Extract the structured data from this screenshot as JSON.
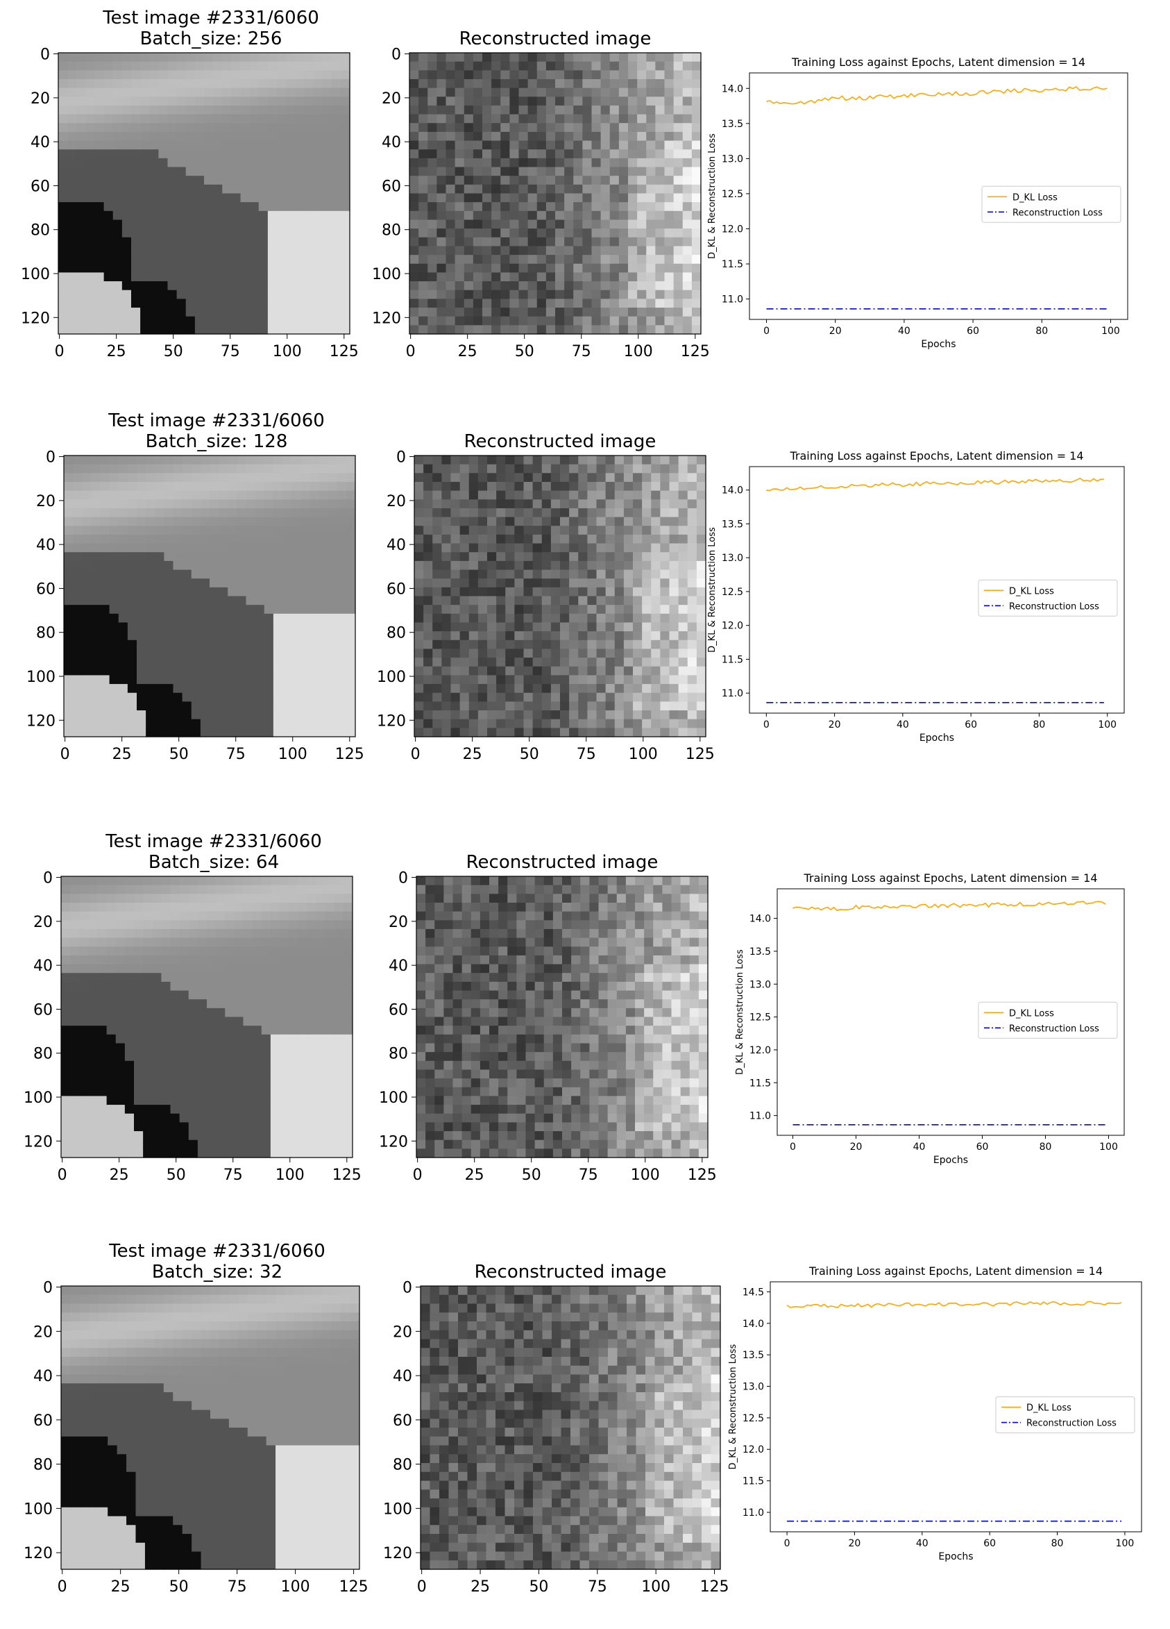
{
  "image_labels": {
    "test_title": "Test image #2331/6060",
    "batch_prefix": "Batch_size: ",
    "recon_title": "Reconstructed image",
    "image_ticks": [
      "0",
      "20",
      "40",
      "60",
      "80",
      "100",
      "120"
    ],
    "image_xticks": [
      "0",
      "25",
      "50",
      "75",
      "100",
      "125"
    ]
  },
  "rows": [
    {
      "batch_size": "256"
    },
    {
      "batch_size": "128"
    },
    {
      "batch_size": "64"
    },
    {
      "batch_size": "32"
    }
  ],
  "colors": {
    "dkl": "#ffa500",
    "recon": "#0000ff"
  },
  "chart_data": [
    {
      "type": "line",
      "title": "Training Loss against Epochs, Latent dimension = 14",
      "xlabel": "Epochs",
      "ylabel": "D_KL & Reconstruction Loss",
      "xlim": [
        0,
        100
      ],
      "ylim": [
        10.85,
        14.08
      ],
      "xticks": [
        0,
        20,
        40,
        60,
        80,
        100
      ],
      "yticks": [
        11.0,
        11.5,
        12.0,
        12.5,
        13.0,
        13.5,
        14.0
      ],
      "legend": [
        "D_KL Loss",
        "Reconstruction Loss"
      ],
      "legend_position": "center-right",
      "series": [
        {
          "name": "D_KL Loss",
          "x": [
            0,
            5,
            10,
            15,
            20,
            25,
            30,
            35,
            40,
            45,
            50,
            55,
            60,
            65,
            70,
            75,
            80,
            85,
            90,
            95,
            99
          ],
          "y": [
            13.8,
            13.78,
            13.8,
            13.83,
            13.87,
            13.85,
            13.87,
            13.88,
            13.9,
            13.91,
            13.92,
            13.93,
            13.93,
            13.95,
            13.96,
            13.97,
            13.98,
            13.99,
            14.0,
            14.0,
            14.0
          ]
        },
        {
          "name": "Reconstruction Loss",
          "x": [
            0,
            99
          ],
          "y": [
            10.86,
            10.86
          ]
        }
      ]
    },
    {
      "type": "line",
      "title": "Training Loss against Epochs, Latent dimension = 14",
      "xlabel": "Epochs",
      "ylabel": "D_KL & Reconstruction Loss",
      "xlim": [
        0,
        100
      ],
      "ylim": [
        10.85,
        14.2
      ],
      "xticks": [
        0,
        20,
        40,
        60,
        80,
        100
      ],
      "yticks": [
        11.0,
        11.5,
        12.0,
        12.5,
        13.0,
        13.5,
        14.0
      ],
      "legend": [
        "D_KL Loss",
        "Reconstruction Loss"
      ],
      "legend_position": "center-right",
      "series": [
        {
          "name": "D_KL Loss",
          "x": [
            0,
            5,
            10,
            15,
            20,
            25,
            30,
            35,
            40,
            45,
            50,
            55,
            60,
            65,
            70,
            75,
            80,
            85,
            90,
            95,
            99
          ],
          "y": [
            14.0,
            14.01,
            14.03,
            14.04,
            14.05,
            14.06,
            14.07,
            14.08,
            14.08,
            14.09,
            14.1,
            14.1,
            14.11,
            14.11,
            14.12,
            14.12,
            14.13,
            14.13,
            14.14,
            14.15,
            14.15
          ]
        },
        {
          "name": "Reconstruction Loss",
          "x": [
            0,
            99
          ],
          "y": [
            10.86,
            10.86
          ]
        }
      ]
    },
    {
      "type": "line",
      "title": "Training Loss against Epochs, Latent dimension = 14",
      "xlabel": "Epochs",
      "ylabel": "D_KL & Reconstruction Loss",
      "xlim": [
        0,
        100
      ],
      "ylim": [
        10.85,
        14.3
      ],
      "xticks": [
        0,
        20,
        40,
        60,
        80,
        100
      ],
      "yticks": [
        11.0,
        11.5,
        12.0,
        12.5,
        13.0,
        13.5,
        14.0
      ],
      "legend": [
        "D_KL Loss",
        "Reconstruction Loss"
      ],
      "legend_position": "center-right",
      "series": [
        {
          "name": "D_KL Loss",
          "x": [
            0,
            5,
            10,
            15,
            20,
            25,
            30,
            35,
            40,
            45,
            50,
            55,
            60,
            65,
            70,
            75,
            80,
            85,
            90,
            95,
            99
          ],
          "y": [
            14.14,
            14.15,
            14.16,
            14.14,
            14.17,
            14.17,
            14.18,
            14.18,
            14.19,
            14.19,
            14.2,
            14.18,
            14.2,
            14.21,
            14.21,
            14.22,
            14.22,
            14.23,
            14.23,
            14.24,
            14.24
          ]
        },
        {
          "name": "Reconstruction Loss",
          "x": [
            0,
            99
          ],
          "y": [
            10.86,
            10.86
          ]
        }
      ]
    },
    {
      "type": "line",
      "title": "Training Loss against Epochs, Latent dimension = 14",
      "xlabel": "Epochs",
      "ylabel": "D_KL & Reconstruction Loss",
      "xlim": [
        0,
        100
      ],
      "ylim": [
        10.85,
        14.5
      ],
      "xticks": [
        0,
        20,
        40,
        60,
        80,
        100
      ],
      "yticks": [
        11.0,
        11.5,
        12.0,
        12.5,
        13.0,
        13.5,
        14.0,
        14.5
      ],
      "legend": [
        "D_KL Loss",
        "Reconstruction Loss"
      ],
      "legend_position": "center-right",
      "series": [
        {
          "name": "D_KL Loss",
          "x": [
            0,
            5,
            10,
            15,
            20,
            25,
            30,
            35,
            40,
            45,
            50,
            55,
            60,
            65,
            70,
            75,
            80,
            85,
            90,
            95,
            99
          ],
          "y": [
            14.27,
            14.28,
            14.29,
            14.27,
            14.29,
            14.28,
            14.29,
            14.3,
            14.29,
            14.31,
            14.3,
            14.31,
            14.3,
            14.31,
            14.32,
            14.31,
            14.32,
            14.31,
            14.32,
            14.32,
            14.33
          ]
        },
        {
          "name": "Reconstruction Loss",
          "x": [
            0,
            99
          ],
          "y": [
            10.86,
            10.86
          ]
        }
      ]
    }
  ]
}
